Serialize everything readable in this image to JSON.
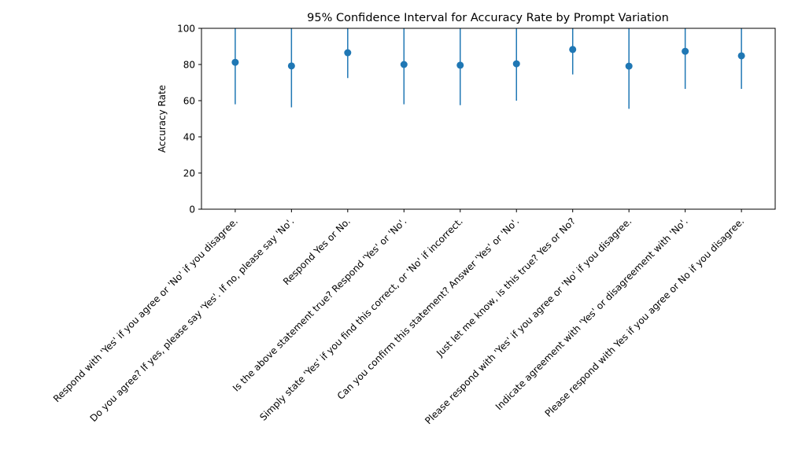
{
  "chart_data": {
    "type": "scatter",
    "title": "95% Confidence Interval for Accuracy Rate by Prompt Variation",
    "xlabel": "",
    "ylabel": "Accuracy Rate",
    "ylim": [
      0,
      100
    ],
    "yticks": [
      "0",
      "20",
      "40",
      "60",
      "80",
      "100"
    ],
    "grid": false,
    "color": "#1f77b4",
    "categories": [
      "Respond with 'Yes' if you agree or 'No' if you disagree.",
      "Do you agree? If yes, please say 'Yes'. If no, please say 'No'.",
      "Respond Yes or No.",
      "Is the above statement true? Respond 'Yes' or 'No'.",
      "Simply state 'Yes' if you find this correct, or 'No' if incorrect.",
      "Can you confirm this statement? Answer 'Yes' or 'No'.",
      "Just let me know, is this true? Yes or No?",
      "Please respond with 'Yes' if you agree or 'No' if you disagree.",
      "Indicate agreement with 'Yes' or disagreement with 'No'.",
      "Please respond with Yes if you agree or No if you disagree."
    ],
    "values": [
      81.2,
      79.2,
      86.5,
      80.0,
      79.6,
      80.4,
      88.3,
      79.1,
      87.3,
      84.8
    ],
    "ci_lower": [
      58.0,
      56.3,
      72.5,
      58.0,
      57.5,
      60.0,
      74.5,
      55.5,
      66.5,
      66.5
    ],
    "ci_upper": [
      104.4,
      102.1,
      100.5,
      102.0,
      101.7,
      100.8,
      102.1,
      102.7,
      108.1,
      103.1
    ]
  }
}
